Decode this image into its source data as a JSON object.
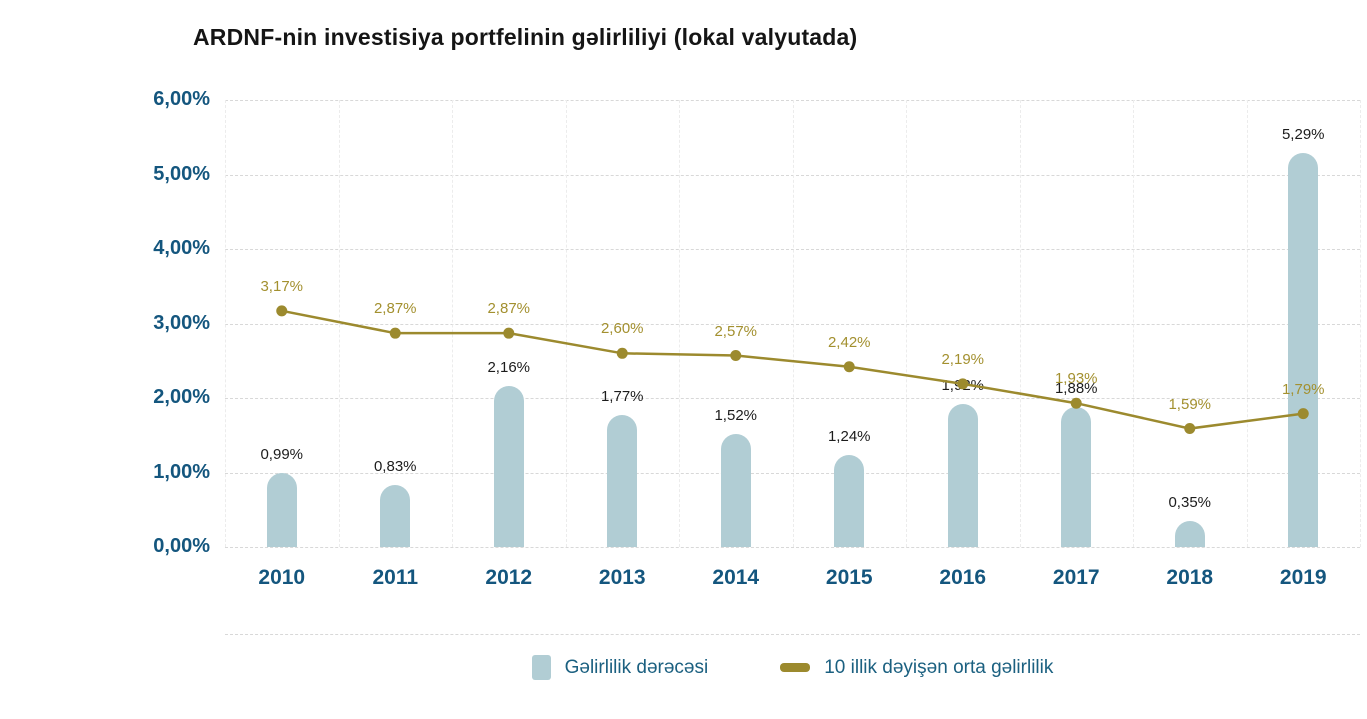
{
  "title": "ARDNF-nin investisiya portfelinin gəlirliliyi (lokal valyutada)",
  "colors": {
    "bar": "#b1cdd4",
    "line": "#9c8a2e",
    "line_label": "#a3902f",
    "axis_text": "#14567e",
    "bar_label": "#1c1c1c",
    "grid": "#d8d8d8"
  },
  "chart_data": {
    "type": "bar",
    "categories": [
      "2010",
      "2011",
      "2012",
      "2013",
      "2014",
      "2015",
      "2016",
      "2017",
      "2018",
      "2019"
    ],
    "series": [
      {
        "name": "Gəlirlilik dərəcəsi",
        "type": "bar",
        "color": "#b1cdd4",
        "values": [
          0.99,
          0.83,
          2.16,
          1.77,
          1.52,
          1.24,
          1.92,
          1.88,
          0.35,
          5.29
        ],
        "labels": [
          "0,99%",
          "0,83%",
          "2,16%",
          "1,77%",
          "1,52%",
          "1,24%",
          "1,92%",
          "1,88%",
          "0,35%",
          "5,29%"
        ]
      },
      {
        "name": "10 illik dəyişən orta gəlirlilik",
        "type": "line",
        "color": "#9c8a2e",
        "values": [
          3.17,
          2.87,
          2.87,
          2.6,
          2.57,
          2.42,
          2.19,
          1.93,
          1.59,
          1.79
        ],
        "labels": [
          "3,17%",
          "2,87%",
          "2,87%",
          "2,60%",
          "2,57%",
          "2,42%",
          "2,19%",
          "1,93%",
          "1,59%",
          "1,79%"
        ]
      }
    ],
    "y_ticks": [
      "0,00%",
      "1,00%",
      "2,00%",
      "3,00%",
      "4,00%",
      "5,00%",
      "6,00%"
    ],
    "ylim": [
      0,
      6
    ],
    "grid": true,
    "legend_position": "bottom"
  }
}
